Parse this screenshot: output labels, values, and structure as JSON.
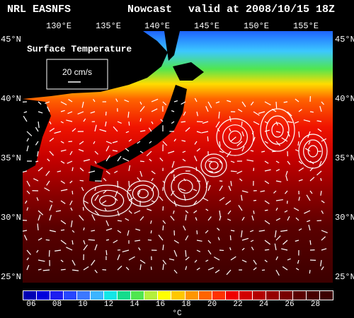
{
  "header": {
    "source": "NRL EASNFS",
    "product": "Nowcast",
    "valid": "valid at 2008/10/15 18Z"
  },
  "map": {
    "field_title": "Surface Temperature",
    "lon_labels": [
      "130°E",
      "135°E",
      "140°E",
      "145°E",
      "150°E",
      "155°E"
    ],
    "lat_labels": [
      "45°N",
      "40°N",
      "35°N",
      "30°N",
      "25°N"
    ],
    "vector_scale": "20 cm/s",
    "land_color": "#ffffff",
    "background": "#000000"
  },
  "colorbar": {
    "unit": "°C",
    "tick_labels": [
      "06",
      "08",
      "10",
      "12",
      "14",
      "16",
      "18",
      "20",
      "22",
      "24",
      "26",
      "28"
    ],
    "colors": [
      "#0000b4",
      "#0000dc",
      "#1e1ef0",
      "#2846ff",
      "#3c78ff",
      "#3cb4ff",
      "#14e6e6",
      "#14dc8c",
      "#50e650",
      "#b4f03c",
      "#ffff00",
      "#ffc800",
      "#ff9600",
      "#ff6400",
      "#ff3200",
      "#f00000",
      "#d20000",
      "#b40000",
      "#960000",
      "#780000",
      "#5a0000",
      "#460000",
      "#3c0000"
    ]
  }
}
